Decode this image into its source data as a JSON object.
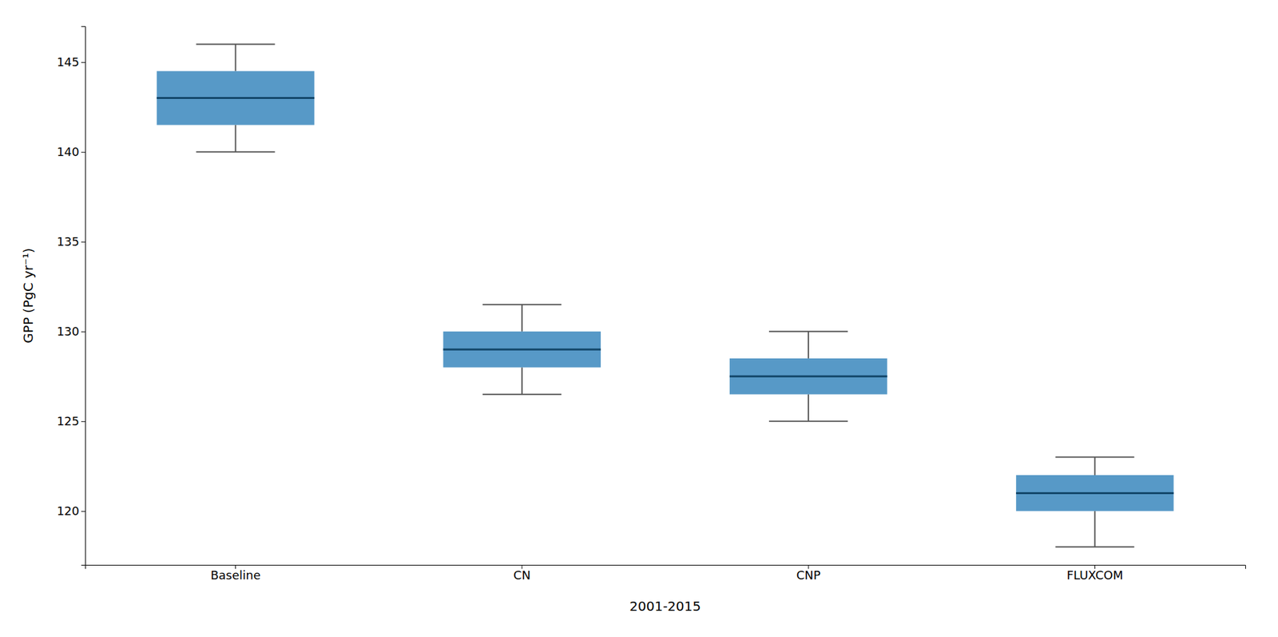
{
  "chart_data": {
    "type": "box",
    "categories": [
      "Baseline",
      "CN",
      "CNP",
      "FLUXCOM"
    ],
    "whisker_low": [
      140.0,
      126.5,
      125.0,
      118.0
    ],
    "q1": [
      141.5,
      128.0,
      126.5,
      120.0
    ],
    "median": [
      143.0,
      129.0,
      127.5,
      121.0
    ],
    "q3": [
      144.5,
      130.0,
      128.5,
      122.0
    ],
    "whisker_high": [
      146.0,
      131.5,
      130.0,
      123.0
    ],
    "xlabel": "2001-2015",
    "ylabel": "GPP (PgC yr⁻¹)",
    "ylim": [
      117,
      147
    ],
    "yticks": [
      120,
      125,
      130,
      135,
      140,
      145
    ],
    "grid": false
  }
}
